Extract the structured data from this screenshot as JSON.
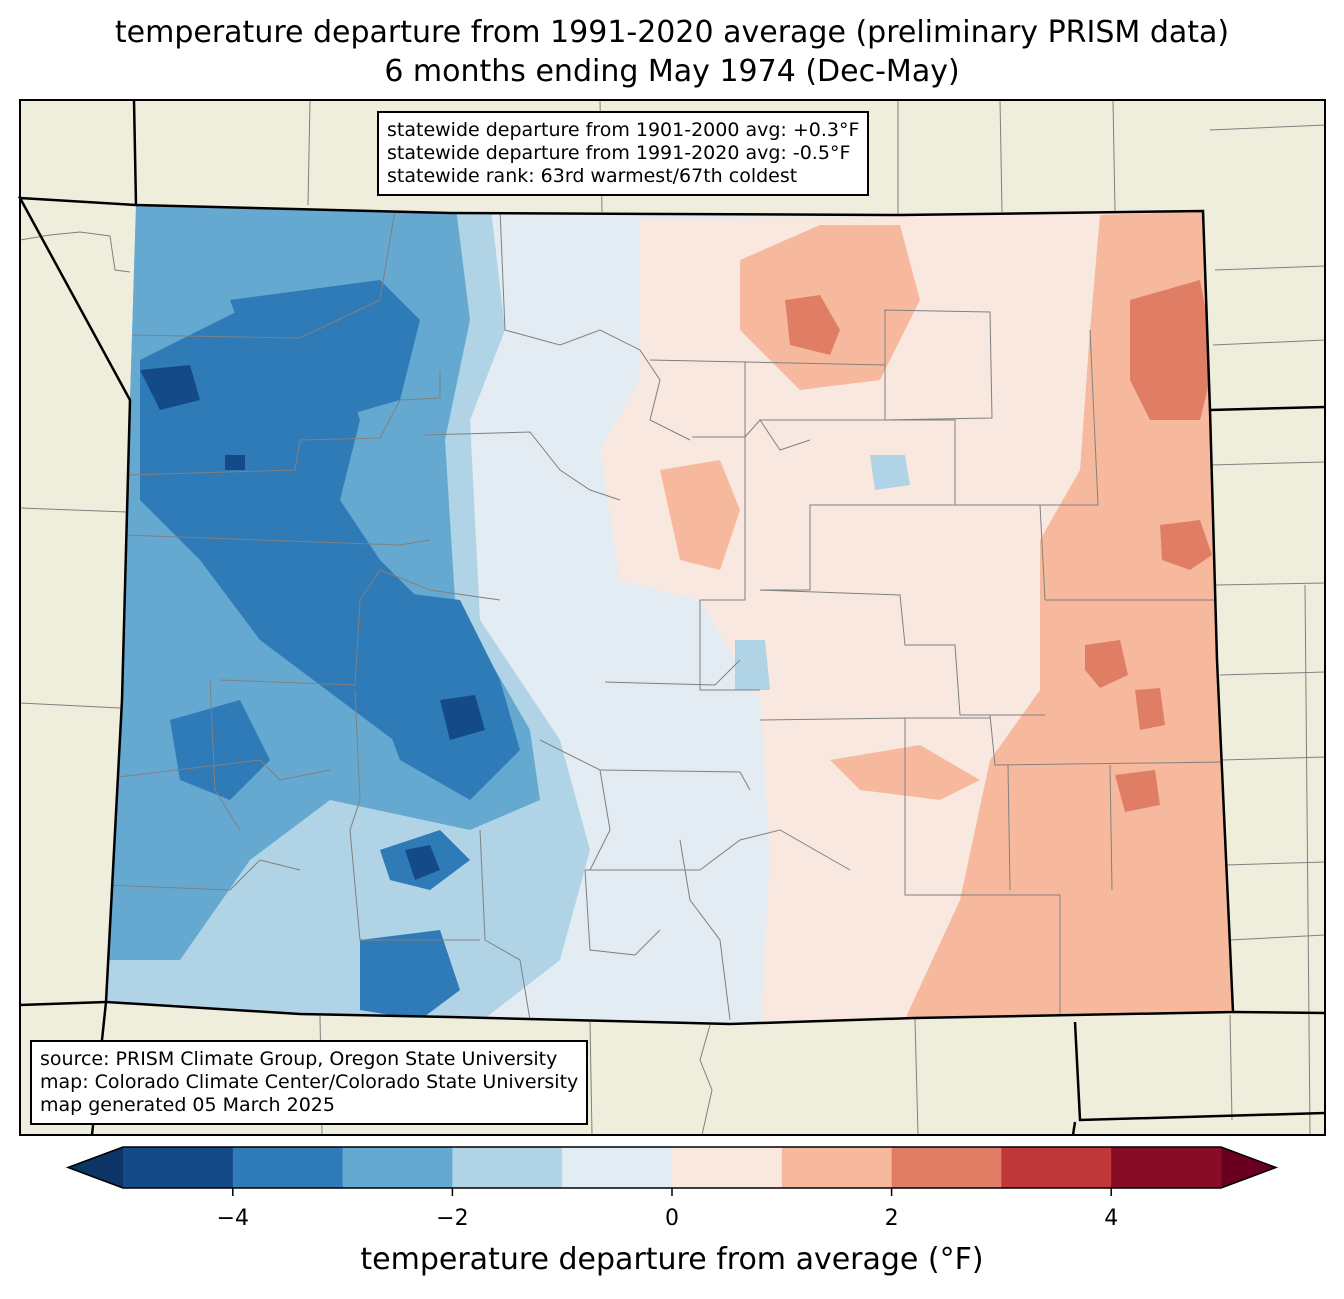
{
  "title": {
    "line1": "temperature departure from 1991-2020 average (preliminary PRISM data)",
    "line2": "6 months ending May 1974 (Dec-May)"
  },
  "stats": {
    "line1": "statewide departure from 1901-2000 avg: +0.3°F",
    "line2": "statewide departure from 1991-2020 avg: -0.5°F",
    "line3": "statewide rank: 63rd warmest/67th coldest"
  },
  "source": {
    "line1": "source: PRISM Climate Group, Oregon State University",
    "line2": "map: Colorado Climate Center/Colorado State University",
    "line3": "map generated 05 March 2025"
  },
  "colorbar": {
    "label": "temperature departure from average (°F)",
    "min": -5,
    "max": 5,
    "ticks": [
      -4,
      -2,
      0,
      2,
      4
    ],
    "tick_labels": [
      "−4",
      "−2",
      "0",
      "2",
      "4"
    ],
    "bins": [
      {
        "from": -5,
        "to": -4,
        "color": "#144a87"
      },
      {
        "from": -4,
        "to": -3,
        "color": "#2f7bb8"
      },
      {
        "from": -3,
        "to": -2,
        "color": "#65a9d1"
      },
      {
        "from": -2,
        "to": -1,
        "color": "#b0d3e6"
      },
      {
        "from": -1,
        "to": 0,
        "color": "#e3ecf3"
      },
      {
        "from": 0,
        "to": 1,
        "color": "#f9e8df"
      },
      {
        "from": 1,
        "to": 2,
        "color": "#f6b99d"
      },
      {
        "from": 2,
        "to": 3,
        "color": "#e07e65"
      },
      {
        "from": 3,
        "to": 4,
        "color": "#c0373a"
      },
      {
        "from": 4,
        "to": 5,
        "color": "#870d26"
      }
    ],
    "under_color": "#0c3465",
    "over_color": "#6a0020"
  },
  "colors": {
    "land": "#efeedd",
    "county_line": "#808080",
    "state_line": "#000000"
  }
}
